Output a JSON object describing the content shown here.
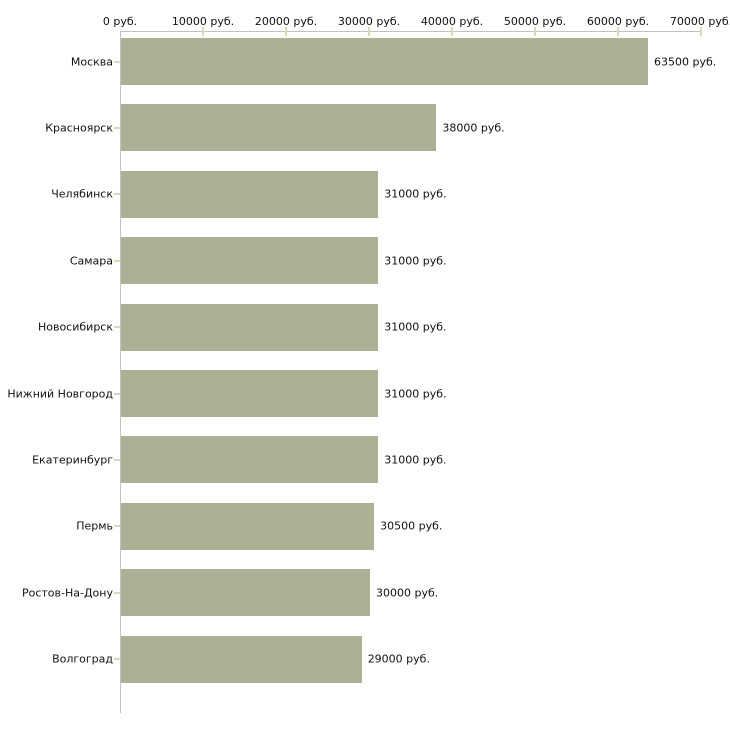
{
  "chart_data": {
    "type": "bar",
    "orientation": "horizontal",
    "title": "",
    "xlabel": "",
    "ylabel": "",
    "categories": [
      "Москва",
      "Красноярск",
      "Челябинск",
      "Самара",
      "Новосибирск",
      "Нижний Новгород",
      "Екатеринбург",
      "Пермь",
      "Ростов-На-Дону",
      "Волгоград"
    ],
    "values": [
      63500,
      38000,
      31000,
      31000,
      31000,
      31000,
      31000,
      30500,
      30000,
      29000
    ],
    "value_labels": [
      "63500 руб.",
      "38000 руб.",
      "31000 руб.",
      "31000 руб.",
      "31000 руб.",
      "31000 руб.",
      "31000 руб.",
      "30500 руб.",
      "30000 руб.",
      "29000 руб."
    ],
    "x_axis": {
      "position": "top",
      "min": 0,
      "max": 70000,
      "tick_values": [
        0,
        10000,
        20000,
        30000,
        40000,
        50000,
        60000,
        70000
      ],
      "tick_labels": [
        "0 руб.",
        "10000 руб.",
        "20000 руб.",
        "30000 руб.",
        "40000 руб.",
        "50000 руб.",
        "60000 руб.",
        "70000 руб."
      ]
    },
    "grid": false,
    "legend": null,
    "colors": {
      "bar": "#acb195",
      "axis_line": "#c2c2c2",
      "tick_mark": "#d9d9bd",
      "text": "#111111",
      "background": "#ffffff"
    }
  }
}
